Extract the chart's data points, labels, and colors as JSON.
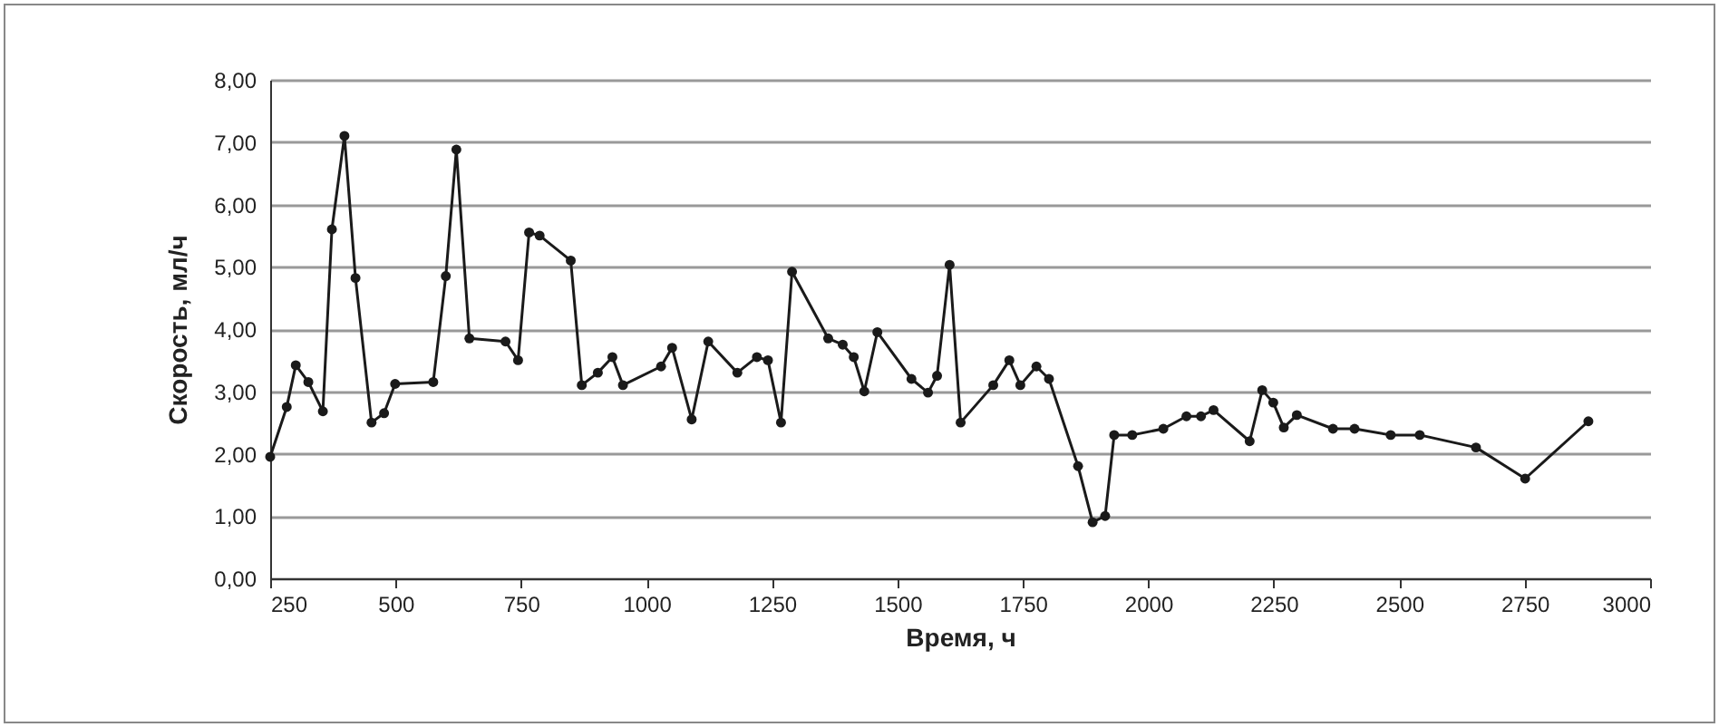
{
  "chart_data": {
    "type": "line",
    "xlabel": "Время, ч",
    "ylabel": "Скорость, мл/ч",
    "x": [
      250,
      283,
      301,
      326,
      355,
      373,
      398,
      420,
      452,
      477,
      499,
      575,
      600,
      621,
      647,
      719,
      744,
      766,
      787,
      849,
      871,
      903,
      932,
      953,
      1029,
      1051,
      1090,
      1123,
      1181,
      1220,
      1242,
      1268,
      1290,
      1362,
      1391,
      1413,
      1434,
      1460,
      1528,
      1561,
      1579,
      1604,
      1626,
      1691,
      1723,
      1745,
      1777,
      1802,
      1860,
      1889,
      1914,
      1932,
      1968,
      2030,
      2076,
      2105,
      2130,
      2202,
      2227,
      2249,
      2270,
      2296,
      2368,
      2411,
      2483,
      2541,
      2653,
      2751,
      2877
    ],
    "series": [
      {
        "color": "#1a1a1a",
        "values": [
          1.95,
          2.75,
          3.42,
          3.15,
          2.68,
          5.6,
          7.1,
          4.82,
          2.5,
          2.65,
          3.12,
          3.15,
          4.85,
          6.88,
          3.85,
          3.8,
          3.5,
          5.55,
          5.5,
          5.1,
          3.1,
          3.3,
          3.55,
          3.1,
          3.4,
          3.7,
          2.55,
          3.8,
          3.3,
          3.55,
          3.5,
          2.5,
          4.92,
          3.85,
          3.75,
          3.55,
          3.0,
          3.95,
          3.2,
          2.98,
          3.25,
          5.03,
          2.5,
          3.1,
          3.5,
          3.1,
          3.4,
          3.2,
          1.8,
          0.9,
          1.0,
          2.3,
          2.3,
          2.4,
          2.6,
          2.6,
          2.7,
          2.2,
          3.02,
          2.82,
          2.42,
          2.62,
          2.4,
          2.4,
          2.3,
          2.3,
          2.1,
          1.6,
          2.52
        ]
      }
    ],
    "xlim": [
      250,
      3000
    ],
    "xticks": [
      250,
      500,
      750,
      1000,
      1250,
      1500,
      1750,
      2000,
      2250,
      2500,
      2750,
      3000
    ],
    "ylim": [
      0,
      8
    ],
    "yticks": [
      {
        "value": 0,
        "label": "0,00"
      },
      {
        "value": 1,
        "label": "1,00"
      },
      {
        "value": 2,
        "label": "2,00"
      },
      {
        "value": 3,
        "label": "3,00"
      },
      {
        "value": 4,
        "label": "4,00"
      },
      {
        "value": 5,
        "label": "5,00"
      },
      {
        "value": 6,
        "label": "6,00"
      },
      {
        "value": 7,
        "label": "7,00"
      },
      {
        "value": 8,
        "label": "8,00"
      }
    ],
    "grid": "y",
    "marker": "circle",
    "line_style": "solid",
    "legend": false
  }
}
